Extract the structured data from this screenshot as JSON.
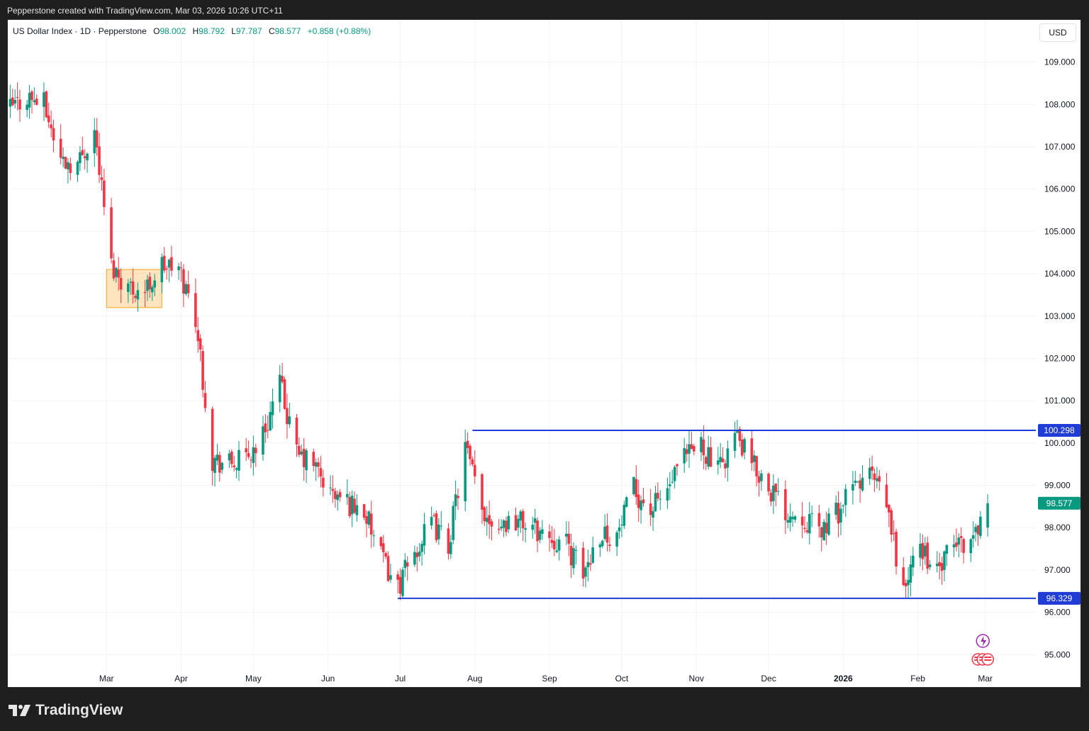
{
  "banner": "Pepperstone created with TradingView.com, Mar 03, 2026 10:26 UTC+11",
  "legend": {
    "symbol": "US Dollar Index · 1D · Pepperstone",
    "o_label": "O",
    "o": "98.002",
    "h_label": "H",
    "h": "98.792",
    "l_label": "L",
    "l": "97.787",
    "c_label": "C",
    "c": "98.577",
    "change": "+0.858 (+0.88%)"
  },
  "currency": "USD",
  "footer": {
    "brand": "TradingView"
  },
  "colors": {
    "up": "#089981",
    "down": "#f23645",
    "level": "#1f3dd6",
    "grid": "#f0f3fa"
  },
  "chart_data": {
    "type": "candlestick",
    "y_ticks": [
      "109.000",
      "108.000",
      "107.000",
      "106.000",
      "105.000",
      "104.000",
      "103.000",
      "102.000",
      "101.000",
      "100.000",
      "99.000",
      "98.000",
      "97.000",
      "96.000",
      "95.000"
    ],
    "ylim": [
      94.2,
      110.0
    ],
    "x_labels": [
      "Mar",
      "Apr",
      "May",
      "Jun",
      "Jul",
      "Aug",
      "Sep",
      "Oct",
      "Nov",
      "Dec",
      "2026",
      "Feb",
      "Mar"
    ],
    "x_label_dates": [
      "2025-03-01",
      "2025-04-01",
      "2025-05-01",
      "2025-06-01",
      "2025-07-01",
      "2025-08-01",
      "2025-09-01",
      "2025-10-01",
      "2025-11-01",
      "2025-12-01",
      "2026-01-01",
      "2026-02-01",
      "2026-03-01"
    ],
    "xlim": [
      "2025-01-19",
      "2026-03-22"
    ],
    "waypoints": [
      [
        "2025-01-20",
        107.9
      ],
      [
        "2025-01-27",
        108.2
      ],
      [
        "2025-02-03",
        108.0
      ],
      [
        "2025-02-10",
        106.7
      ],
      [
        "2025-02-17",
        106.6
      ],
      [
        "2025-02-24",
        107.4
      ],
      [
        "2025-03-03",
        104.2
      ],
      [
        "2025-03-10",
        103.7
      ],
      [
        "2025-03-17",
        103.6
      ],
      [
        "2025-03-24",
        104.2
      ],
      [
        "2025-03-31",
        104.1
      ],
      [
        "2025-04-07",
        103.0
      ],
      [
        "2025-04-14",
        99.6
      ],
      [
        "2025-04-21",
        99.5
      ],
      [
        "2025-04-28",
        99.6
      ],
      [
        "2025-05-05",
        100.2
      ],
      [
        "2025-05-12",
        101.4
      ],
      [
        "2025-05-19",
        99.7
      ],
      [
        "2025-05-26",
        99.5
      ],
      [
        "2025-06-02",
        98.8
      ],
      [
        "2025-06-09",
        98.6
      ],
      [
        "2025-06-16",
        98.4
      ],
      [
        "2025-06-23",
        97.3
      ],
      [
        "2025-06-30",
        96.6
      ],
      [
        "2025-07-07",
        97.4
      ],
      [
        "2025-07-14",
        98.1
      ],
      [
        "2025-07-21",
        97.6
      ],
      [
        "2025-07-28",
        99.9
      ],
      [
        "2025-08-04",
        98.4
      ],
      [
        "2025-08-11",
        98.1
      ],
      [
        "2025-08-18",
        98.2
      ],
      [
        "2025-08-25",
        98.0
      ],
      [
        "2025-09-01",
        97.8
      ],
      [
        "2025-09-08",
        97.6
      ],
      [
        "2025-09-15",
        96.9
      ],
      [
        "2025-09-22",
        97.9
      ],
      [
        "2025-09-29",
        97.8
      ],
      [
        "2025-10-06",
        98.9
      ],
      [
        "2025-10-13",
        98.4
      ],
      [
        "2025-10-20",
        98.9
      ],
      [
        "2025-10-27",
        99.6
      ],
      [
        "2025-11-03",
        100.0
      ],
      [
        "2025-11-10",
        99.3
      ],
      [
        "2025-11-17",
        100.2
      ],
      [
        "2025-11-24",
        99.5
      ],
      [
        "2025-12-01",
        99.0
      ],
      [
        "2025-12-08",
        98.4
      ],
      [
        "2025-12-15",
        98.3
      ],
      [
        "2025-12-22",
        97.9
      ],
      [
        "2025-12-29",
        98.3
      ],
      [
        "2026-01-05",
        98.9
      ],
      [
        "2026-01-12",
        99.3
      ],
      [
        "2026-01-19",
        98.5
      ],
      [
        "2026-01-26",
        96.5
      ],
      [
        "2026-02-02",
        97.6
      ],
      [
        "2026-02-09",
        96.9
      ],
      [
        "2026-02-16",
        97.6
      ],
      [
        "2026-02-23",
        97.7
      ],
      [
        "2026-03-02",
        98.577
      ]
    ],
    "levels": [
      {
        "value": 100.298,
        "label": "100.298",
        "from": "2025-07-31"
      },
      {
        "value": 96.329,
        "label": "96.329",
        "from": "2025-06-30"
      }
    ],
    "last_price": {
      "value": 98.577,
      "label": "98.577"
    },
    "highlight_box": {
      "from": "2025-03-01",
      "to": "2025-03-24",
      "y_low": 103.2,
      "y_high": 104.1
    }
  }
}
